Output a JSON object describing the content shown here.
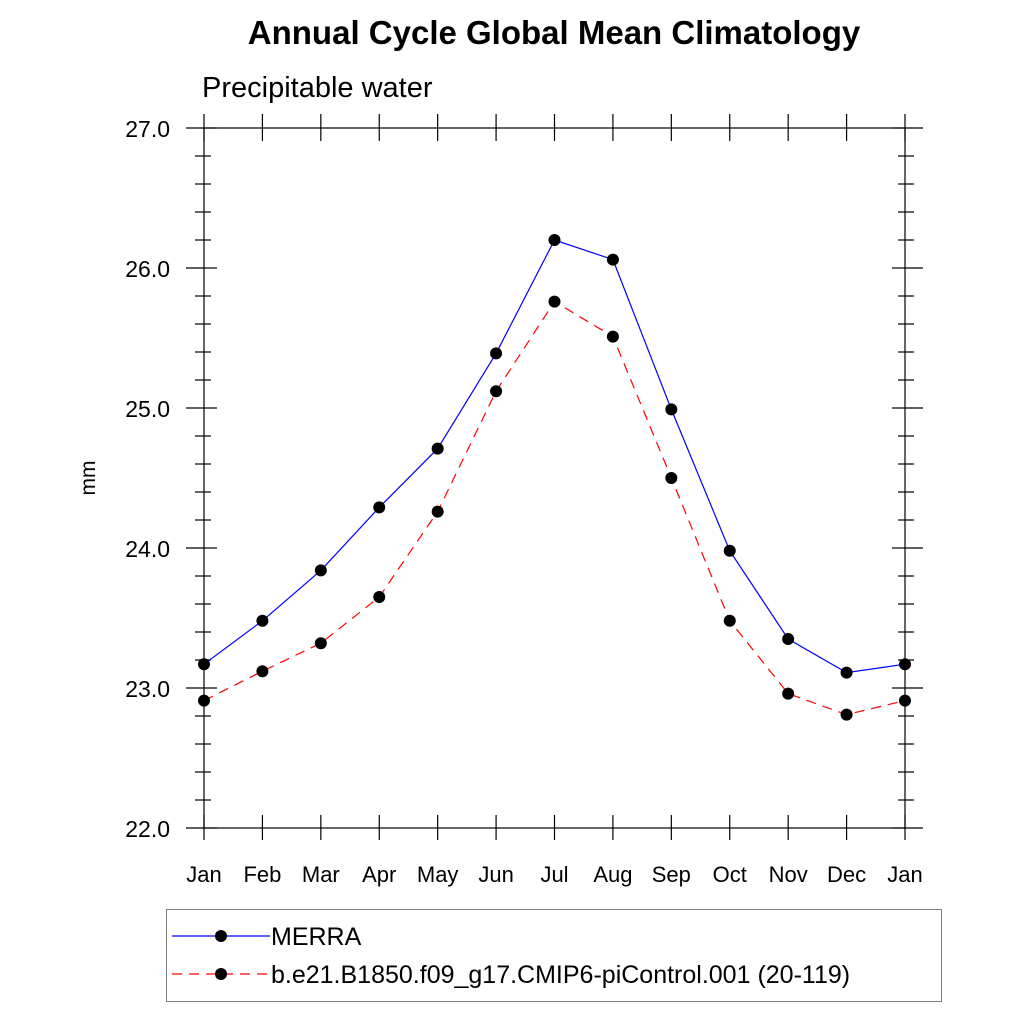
{
  "chart_data": {
    "type": "line",
    "title": "Annual Cycle Global Mean Climatology",
    "subtitle": "Precipitable water",
    "xlabel": "",
    "ylabel": "mm",
    "categories": [
      "Jan",
      "Feb",
      "Mar",
      "Apr",
      "May",
      "Jun",
      "Jul",
      "Aug",
      "Sep",
      "Oct",
      "Nov",
      "Dec",
      "Jan"
    ],
    "ylim": [
      22.0,
      27.0
    ],
    "yticks": [
      "22.0",
      "23.0",
      "24.0",
      "25.0",
      "26.0",
      "27.0"
    ],
    "grid": false,
    "legend_placement": "bottom",
    "series": [
      {
        "name": "MERRA",
        "color": "#0000ff",
        "linestyle": "solid",
        "marker": "filled-circle",
        "values": [
          23.17,
          23.48,
          23.84,
          24.29,
          24.71,
          25.39,
          26.2,
          26.06,
          24.99,
          23.98,
          23.35,
          23.11,
          23.17
        ]
      },
      {
        "name": "b.e21.B1850.f09_g17.CMIP6-piControl.001 (20-119)",
        "color": "#ff0000",
        "linestyle": "dashed",
        "marker": "filled-circle",
        "values": [
          22.91,
          23.12,
          23.32,
          23.65,
          24.26,
          25.12,
          25.76,
          25.51,
          24.5,
          23.48,
          22.96,
          22.81,
          22.91
        ]
      }
    ]
  }
}
